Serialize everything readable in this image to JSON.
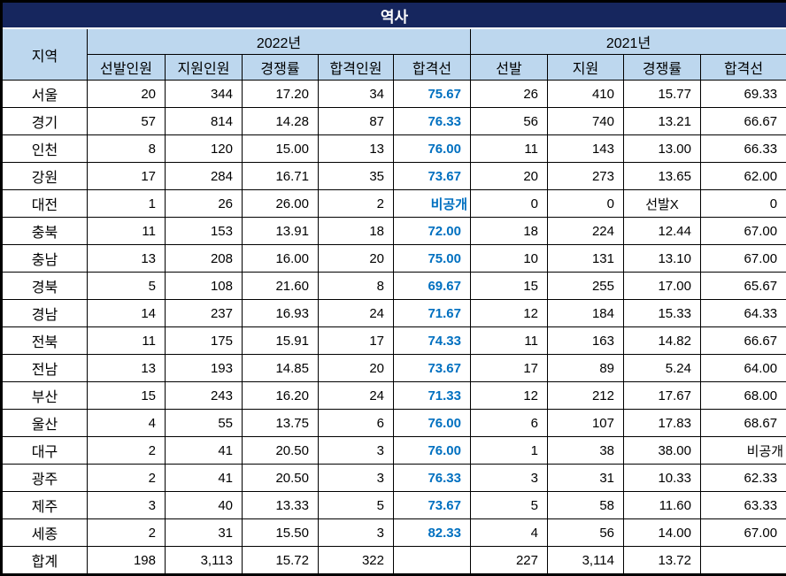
{
  "colors": {
    "title_bg": "#16265E",
    "title_fg": "#FFFFFF",
    "header_bg": "#BDD7EE",
    "cutoff_2022_text": "#0070C0",
    "border": "#000000"
  },
  "chart_data": {
    "type": "table",
    "title": "역사",
    "region_header": "지역",
    "col_groups": [
      {
        "label": "2022년",
        "columns": [
          "선발인원",
          "지원인원",
          "경쟁률",
          "합격인원",
          "합격선"
        ]
      },
      {
        "label": "2021년",
        "columns": [
          "선발",
          "지원",
          "경쟁률",
          "합격선"
        ]
      }
    ],
    "rows": [
      {
        "region": "서울",
        "cells": [
          "20",
          "344",
          "17.20",
          "34",
          "75.67",
          "26",
          "410",
          "15.77",
          "69.33"
        ]
      },
      {
        "region": "경기",
        "cells": [
          "57",
          "814",
          "14.28",
          "87",
          "76.33",
          "56",
          "740",
          "13.21",
          "66.67"
        ]
      },
      {
        "region": "인천",
        "cells": [
          "8",
          "120",
          "15.00",
          "13",
          "76.00",
          "11",
          "143",
          "13.00",
          "66.33"
        ]
      },
      {
        "region": "강원",
        "cells": [
          "17",
          "284",
          "16.71",
          "35",
          "73.67",
          "20",
          "273",
          "13.65",
          "62.00"
        ]
      },
      {
        "region": "대전",
        "cells": [
          "1",
          "26",
          "26.00",
          "2",
          "비공개",
          "0",
          "0",
          "선발X",
          "0"
        ]
      },
      {
        "region": "충북",
        "cells": [
          "11",
          "153",
          "13.91",
          "18",
          "72.00",
          "18",
          "224",
          "12.44",
          "67.00"
        ]
      },
      {
        "region": "충남",
        "cells": [
          "13",
          "208",
          "16.00",
          "20",
          "75.00",
          "10",
          "131",
          "13.10",
          "67.00"
        ]
      },
      {
        "region": "경북",
        "cells": [
          "5",
          "108",
          "21.60",
          "8",
          "69.67",
          "15",
          "255",
          "17.00",
          "65.67"
        ]
      },
      {
        "region": "경남",
        "cells": [
          "14",
          "237",
          "16.93",
          "24",
          "71.67",
          "12",
          "184",
          "15.33",
          "64.33"
        ]
      },
      {
        "region": "전북",
        "cells": [
          "11",
          "175",
          "15.91",
          "17",
          "74.33",
          "11",
          "163",
          "14.82",
          "66.67"
        ]
      },
      {
        "region": "전남",
        "cells": [
          "13",
          "193",
          "14.85",
          "20",
          "73.67",
          "17",
          "89",
          "5.24",
          "64.00"
        ]
      },
      {
        "region": "부산",
        "cells": [
          "15",
          "243",
          "16.20",
          "24",
          "71.33",
          "12",
          "212",
          "17.67",
          "68.00"
        ]
      },
      {
        "region": "울산",
        "cells": [
          "4",
          "55",
          "13.75",
          "6",
          "76.00",
          "6",
          "107",
          "17.83",
          "68.67"
        ]
      },
      {
        "region": "대구",
        "cells": [
          "2",
          "41",
          "20.50",
          "3",
          "76.00",
          "1",
          "38",
          "38.00",
          "비공개"
        ]
      },
      {
        "region": "광주",
        "cells": [
          "2",
          "41",
          "20.50",
          "3",
          "76.33",
          "3",
          "31",
          "10.33",
          "62.33"
        ]
      },
      {
        "region": "제주",
        "cells": [
          "3",
          "40",
          "13.33",
          "5",
          "73.67",
          "5",
          "58",
          "11.60",
          "63.33"
        ]
      },
      {
        "region": "세종",
        "cells": [
          "2",
          "31",
          "15.50",
          "3",
          "82.33",
          "4",
          "56",
          "14.00",
          "67.00"
        ]
      },
      {
        "region": "합계",
        "cells": [
          "198",
          "3,113",
          "15.72",
          "322",
          "",
          "227",
          "3,114",
          "13.72",
          ""
        ]
      }
    ]
  }
}
